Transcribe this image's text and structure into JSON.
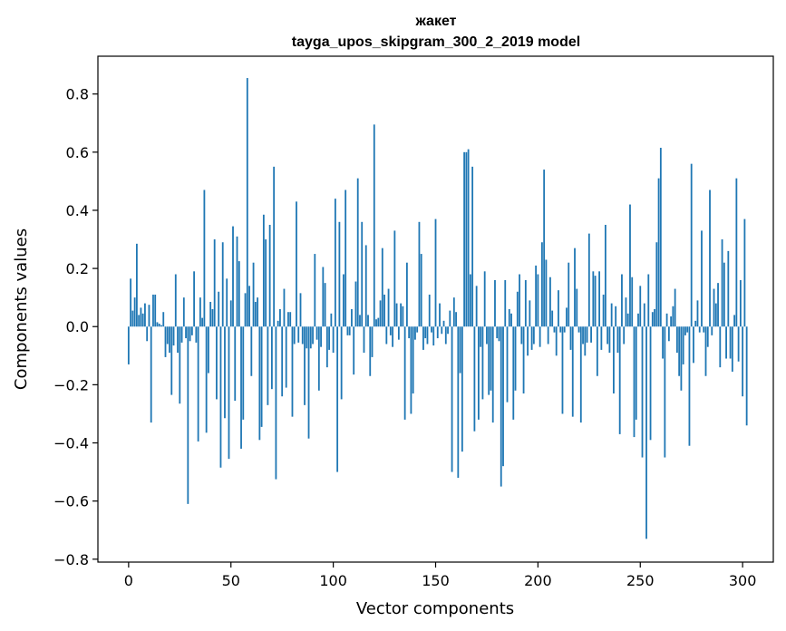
{
  "chart_data": {
    "type": "bar",
    "title": "жакет",
    "subtitle": "tayga_upos_skipgram_300_2_2019 model",
    "xlabel": "Vector components",
    "ylabel": "Components values",
    "xlim": [
      -15,
      315
    ],
    "ylim": [
      -0.81,
      0.93
    ],
    "xticks": [
      0,
      50,
      100,
      150,
      200,
      250,
      300
    ],
    "yticks": [
      -0.8,
      -0.6,
      -0.4,
      -0.2,
      0.0,
      0.2,
      0.4,
      0.6,
      0.8
    ],
    "ytick_labels": [
      "−0.8",
      "−0.6",
      "−0.4",
      "−0.2",
      "0.0",
      "0.2",
      "0.4",
      "0.6",
      "0.8"
    ],
    "grid": false,
    "bar_color": "#1f77b4",
    "values": [
      -0.13,
      0.165,
      0.055,
      0.1,
      0.285,
      0.04,
      0.065,
      0.045,
      0.08,
      -0.05,
      0.075,
      -0.33,
      0.11,
      0.11,
      0.015,
      0.01,
      0.005,
      0.05,
      -0.105,
      -0.06,
      -0.09,
      -0.235,
      -0.065,
      0.18,
      -0.09,
      -0.265,
      -0.055,
      0.1,
      -0.04,
      -0.61,
      -0.05,
      -0.03,
      0.19,
      -0.055,
      -0.395,
      0.1,
      0.03,
      0.47,
      -0.365,
      -0.16,
      0.085,
      0.06,
      0.3,
      -0.25,
      0.12,
      -0.485,
      0.29,
      -0.315,
      0.165,
      -0.455,
      0.09,
      0.345,
      -0.255,
      0.31,
      0.225,
      -0.42,
      -0.32,
      0.115,
      0.855,
      0.14,
      -0.17,
      0.22,
      0.085,
      0.1,
      -0.39,
      -0.345,
      0.385,
      0.3,
      -0.27,
      0.35,
      -0.215,
      0.55,
      -0.525,
      0.02,
      0.06,
      -0.24,
      0.13,
      -0.21,
      0.05,
      0.05,
      -0.31,
      -0.06,
      0.43,
      -0.055,
      0.115,
      -0.06,
      -0.27,
      -0.075,
      -0.385,
      -0.075,
      -0.06,
      0.25,
      -0.045,
      -0.22,
      -0.07,
      0.205,
      0.15,
      -0.14,
      -0.08,
      0.045,
      -0.09,
      0.44,
      -0.5,
      0.36,
      -0.25,
      0.18,
      0.47,
      -0.03,
      -0.03,
      0.06,
      -0.165,
      0.155,
      0.51,
      0.04,
      0.36,
      -0.09,
      0.28,
      0.04,
      -0.17,
      -0.105,
      0.695,
      0.025,
      0.03,
      0.09,
      0.27,
      0.11,
      -0.06,
      0.13,
      -0.03,
      -0.07,
      0.33,
      0.08,
      -0.045,
      0.08,
      0.07,
      -0.32,
      0.22,
      -0.04,
      -0.3,
      -0.23,
      -0.045,
      -0.02,
      0.36,
      0.25,
      -0.08,
      -0.04,
      -0.06,
      0.11,
      -0.02,
      -0.065,
      0.37,
      -0.04,
      0.08,
      -0.025,
      0.02,
      -0.06,
      -0.025,
      0.055,
      -0.5,
      0.1,
      0.05,
      -0.52,
      -0.16,
      -0.43,
      0.6,
      0.6,
      0.61,
      0.18,
      0.55,
      -0.36,
      0.14,
      -0.32,
      -0.07,
      -0.25,
      0.19,
      -0.06,
      -0.235,
      -0.22,
      -0.33,
      0.16,
      -0.04,
      -0.05,
      -0.55,
      -0.48,
      0.16,
      -0.26,
      0.06,
      0.045,
      -0.32,
      -0.22,
      0.12,
      0.18,
      -0.06,
      -0.23,
      0.16,
      -0.1,
      0.09,
      -0.08,
      -0.06,
      0.21,
      0.18,
      -0.07,
      0.29,
      0.54,
      0.23,
      -0.06,
      0.17,
      0.055,
      -0.02,
      -0.1,
      0.125,
      -0.02,
      -0.3,
      -0.02,
      0.065,
      0.22,
      -0.08,
      -0.31,
      0.27,
      0.13,
      -0.02,
      -0.33,
      -0.06,
      -0.1,
      -0.055,
      0.32,
      -0.055,
      0.19,
      0.175,
      -0.17,
      0.19,
      -0.08,
      0.11,
      0.35,
      -0.06,
      -0.09,
      0.08,
      -0.23,
      0.07,
      -0.09,
      -0.37,
      0.18,
      -0.06,
      0.1,
      0.045,
      0.42,
      0.17,
      -0.38,
      -0.32,
      0.045,
      0.14,
      -0.45,
      0.08,
      -0.73,
      0.18,
      -0.39,
      0.05,
      0.06,
      0.29,
      0.51,
      0.615,
      -0.11,
      -0.45,
      0.045,
      -0.05,
      0.035,
      0.07,
      0.13,
      -0.09,
      -0.17,
      -0.22,
      -0.13,
      -0.03,
      -0.02,
      -0.41,
      0.56,
      -0.125,
      0.02,
      0.09,
      -0.02,
      0.33,
      -0.02,
      -0.17,
      -0.07,
      0.47,
      -0.03,
      0.13,
      0.08,
      0.15,
      -0.14,
      0.3,
      0.22,
      -0.11,
      0.26,
      -0.11,
      -0.155,
      0.04,
      0.51,
      -0.12,
      0.16,
      -0.24,
      0.37,
      -0.34
    ]
  }
}
